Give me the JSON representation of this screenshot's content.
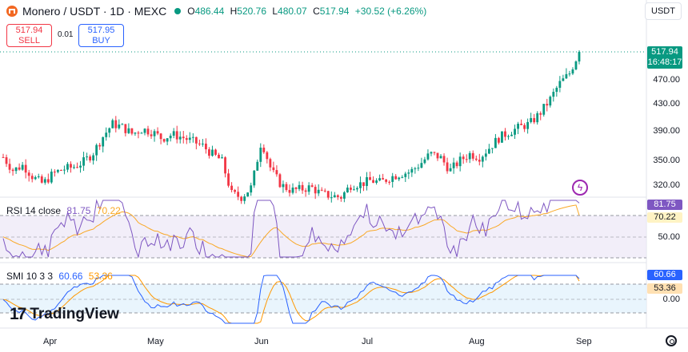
{
  "header": {
    "symbol": "Monero / USDT · 1D · MEXC",
    "o_label": "O",
    "o_value": "486.44",
    "h_label": "H",
    "h_value": "520.76",
    "l_label": "L",
    "l_value": "480.07",
    "c_label": "C",
    "c_value": "517.94",
    "change": "+30.52 (+6.26%)",
    "currency_button": "USDT"
  },
  "trade": {
    "sell_price": "517.94",
    "sell_label": "SELL",
    "spread": "0.01",
    "buy_price": "517.95",
    "buy_label": "BUY"
  },
  "price_axis": {
    "labels": [
      "470.00",
      "430.00",
      "390.00",
      "350.00",
      "320.00"
    ],
    "last_price": "517.94",
    "countdown": "16:48:17"
  },
  "rsi": {
    "label": "RSI",
    "params": "14 close",
    "value1": "81.75",
    "value2": "70.22",
    "axis_mid": "50.00"
  },
  "smi": {
    "label": "SMI",
    "params": "10 3 3",
    "value1": "60.66",
    "value2": "53.36",
    "axis_zero": "0.00"
  },
  "time_axis": [
    "Apr",
    "May",
    "Jun",
    "Jul",
    "Aug",
    "Sep"
  ],
  "branding": "TradingView",
  "colors": {
    "up": "#089981",
    "down": "#f23645",
    "rsi": "#7e57c2",
    "rsi_ma": "#f9a825",
    "smi": "#2962ff",
    "smi_signal": "#ff9800"
  },
  "chart_data": {
    "type": "candlestick",
    "title": "Monero / USDT · 1D · MEXC",
    "x_range": [
      "Mar",
      "Sep"
    ],
    "ylim": [
      300,
      530
    ],
    "price_path": [
      360,
      340,
      348,
      330,
      320,
      335,
      342,
      345,
      352,
      365,
      390,
      410,
      405,
      395,
      402,
      398,
      388,
      394,
      390,
      384,
      378,
      365,
      355,
      305,
      300,
      315,
      385,
      340,
      318,
      310,
      312,
      315,
      305,
      302,
      300,
      318,
      320,
      325,
      322,
      330,
      335,
      338,
      350,
      365,
      360,
      340,
      355,
      365,
      360,
      375,
      390,
      398,
      405,
      410,
      425,
      445,
      470,
      485,
      518
    ],
    "rsi_last": 81.75,
    "rsi_ma_last": 70.22,
    "smi_last": 60.66,
    "smi_signal_last": 53.36
  }
}
